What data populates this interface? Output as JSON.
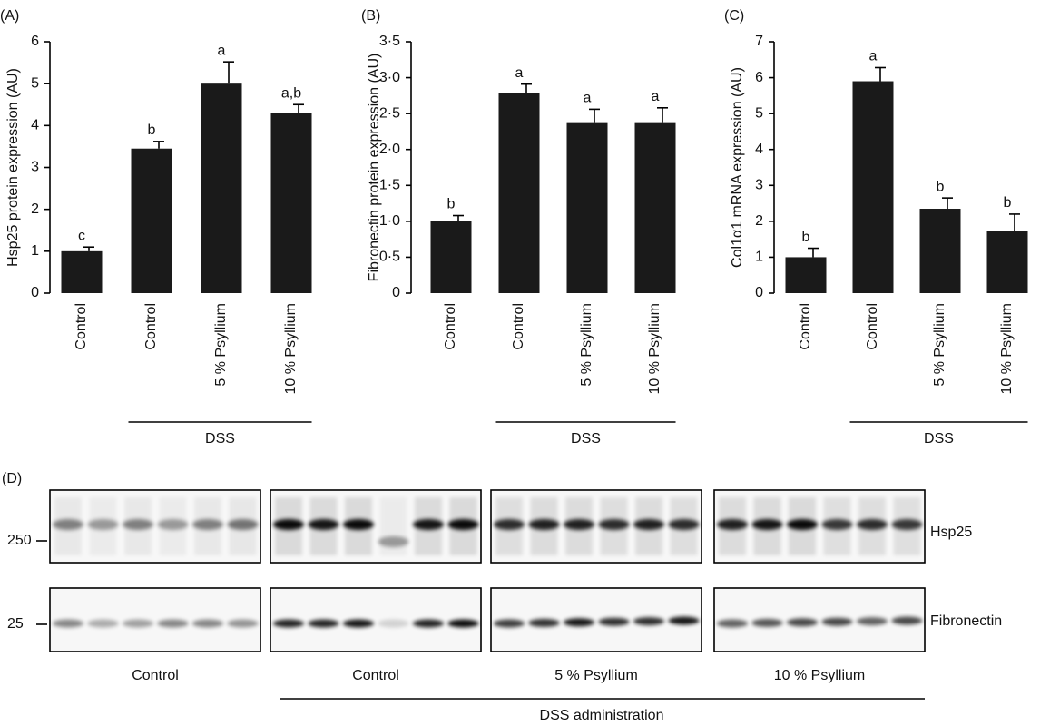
{
  "chart_data": [
    {
      "type": "bar",
      "panel_label": "(A)",
      "y_label": "Hsp25 protein expression (AU)",
      "categories": [
        "Control",
        "Control",
        "5 % Psyllium",
        "10 % Psyllium"
      ],
      "values": [
        1.0,
        3.45,
        5.0,
        4.3
      ],
      "errors": [
        0.1,
        0.17,
        0.52,
        0.2
      ],
      "annotations": [
        "c",
        "b",
        "a",
        "a,b"
      ],
      "group_label": "DSS",
      "color": "#1a1a1a",
      "ylim": [
        0,
        6
      ],
      "yticks": [
        0,
        1,
        2,
        3,
        4,
        5,
        6
      ]
    },
    {
      "type": "bar",
      "panel_label": "(B)",
      "y_label": "Fibronectin protein expression (AU)",
      "categories": [
        "Control",
        "Control",
        "5 % Psyllium",
        "10 % Psyllium"
      ],
      "values": [
        1.0,
        2.78,
        2.38,
        2.38
      ],
      "errors": [
        0.08,
        0.13,
        0.18,
        0.2
      ],
      "annotations": [
        "b",
        "a",
        "a",
        "a"
      ],
      "group_label": "DSS",
      "color": "#1a1a1a",
      "ylim": [
        0,
        3.5
      ],
      "yticks": [
        0,
        {
          "value": 0.5,
          "label": "0·5"
        },
        {
          "value": 1,
          "label": "1·0"
        },
        {
          "value": 1.5,
          "label": "1·5"
        },
        {
          "value": 2,
          "label": "2·0"
        },
        {
          "value": 2.5,
          "label": "2·5"
        },
        {
          "value": 3,
          "label": "3·0"
        },
        {
          "value": 3.5,
          "label": "3·5"
        }
      ]
    },
    {
      "type": "bar",
      "panel_label": "(C)",
      "y_label": "Col1α1 mRNA expression (AU)",
      "categories": [
        "Control",
        "Control",
        "5 % Psyllium",
        "10 % Psyllium"
      ],
      "values": [
        1.0,
        5.9,
        2.35,
        1.72
      ],
      "errors": [
        0.25,
        0.38,
        0.3,
        0.48
      ],
      "annotations": [
        "b",
        "a",
        "b",
        "b"
      ],
      "group_label": "DSS",
      "color": "#1a1a1a",
      "ylim": [
        0,
        7
      ],
      "yticks": [
        0,
        1,
        2,
        3,
        4,
        5,
        6,
        7
      ]
    }
  ],
  "blot": {
    "panel_label": "(D)",
    "markers": [
      "250",
      "25"
    ],
    "rows": [
      "Hsp25",
      "Fibronectin"
    ],
    "groups": [
      "Control",
      "Control",
      "5 % Psyllium",
      "10 % Psyllium"
    ],
    "group_label": "DSS administration"
  }
}
